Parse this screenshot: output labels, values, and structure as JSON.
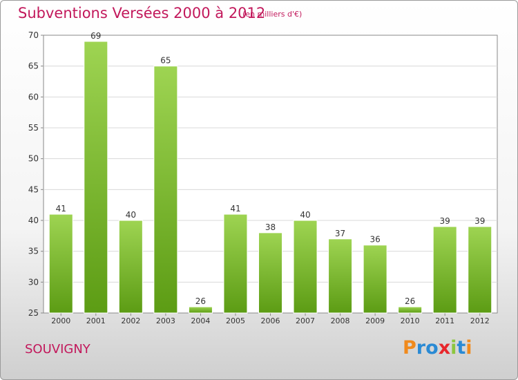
{
  "header": {
    "title": "Subventions Versées 2000 à 2012",
    "subtitle": "(en milliers d'€)"
  },
  "footer": {
    "city": "SOUVIGNY",
    "logo": "Proxiti"
  },
  "colors": {
    "title": "#c2185b",
    "bar_top": "#9ed452",
    "bar_bottom": "#5c9c14",
    "logo": [
      "#f08a1c",
      "#2a8ad4",
      "#2a8ad4",
      "#e8262b",
      "#8cc63f",
      "#2a8ad4",
      "#f08a1c"
    ]
  },
  "chart_data": {
    "type": "bar",
    "categories": [
      "2000",
      "2001",
      "2002",
      "2003",
      "2004",
      "2005",
      "2006",
      "2007",
      "2008",
      "2009",
      "2010",
      "2011",
      "2012"
    ],
    "values": [
      41,
      69,
      40,
      65,
      26,
      41,
      38,
      40,
      37,
      36,
      26,
      39,
      39
    ],
    "title": "Subventions Versées 2000 à 2012",
    "subtitle": "(en milliers d'€)",
    "xlabel": "",
    "ylabel": "",
    "ylim": [
      25,
      70
    ],
    "yticks": [
      25,
      30,
      35,
      40,
      45,
      50,
      55,
      60,
      65,
      70
    ],
    "grid": true,
    "legend": "none"
  }
}
